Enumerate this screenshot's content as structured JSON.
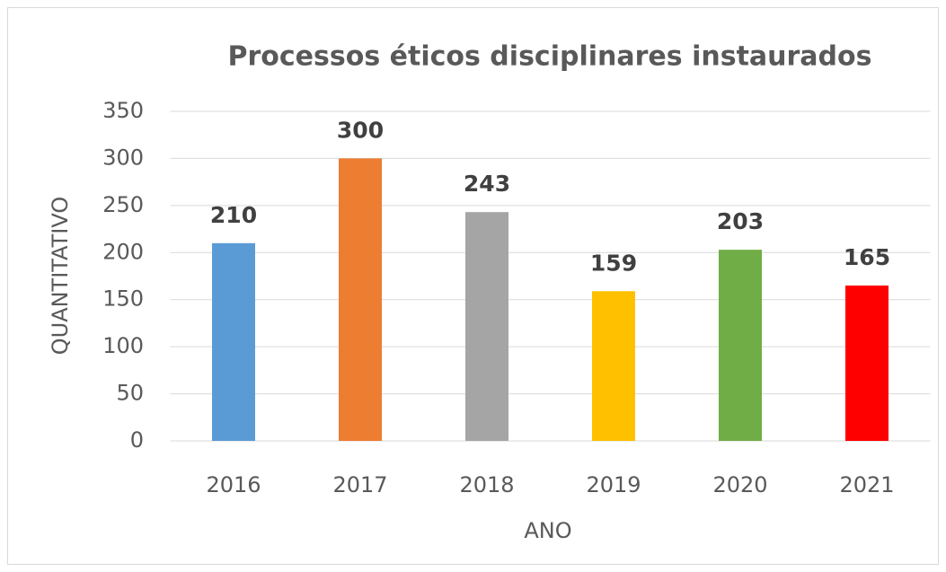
{
  "chart_data": {
    "type": "bar",
    "title": "Processos éticos disciplinares instaurados",
    "x_label": "ANO",
    "y_label": "QUANTITATIVO",
    "categories": [
      "2016",
      "2017",
      "2018",
      "2019",
      "2020",
      "2021"
    ],
    "values": [
      210,
      300,
      243,
      159,
      203,
      165
    ],
    "colors": [
      "#5b9bd5",
      "#ed7d31",
      "#a5a5a5",
      "#ffc000",
      "#70ad47",
      "#ff0000"
    ],
    "ylim": [
      0,
      350
    ],
    "yticks": [
      0,
      50,
      100,
      150,
      200,
      250,
      300,
      350
    ],
    "grid": true
  }
}
